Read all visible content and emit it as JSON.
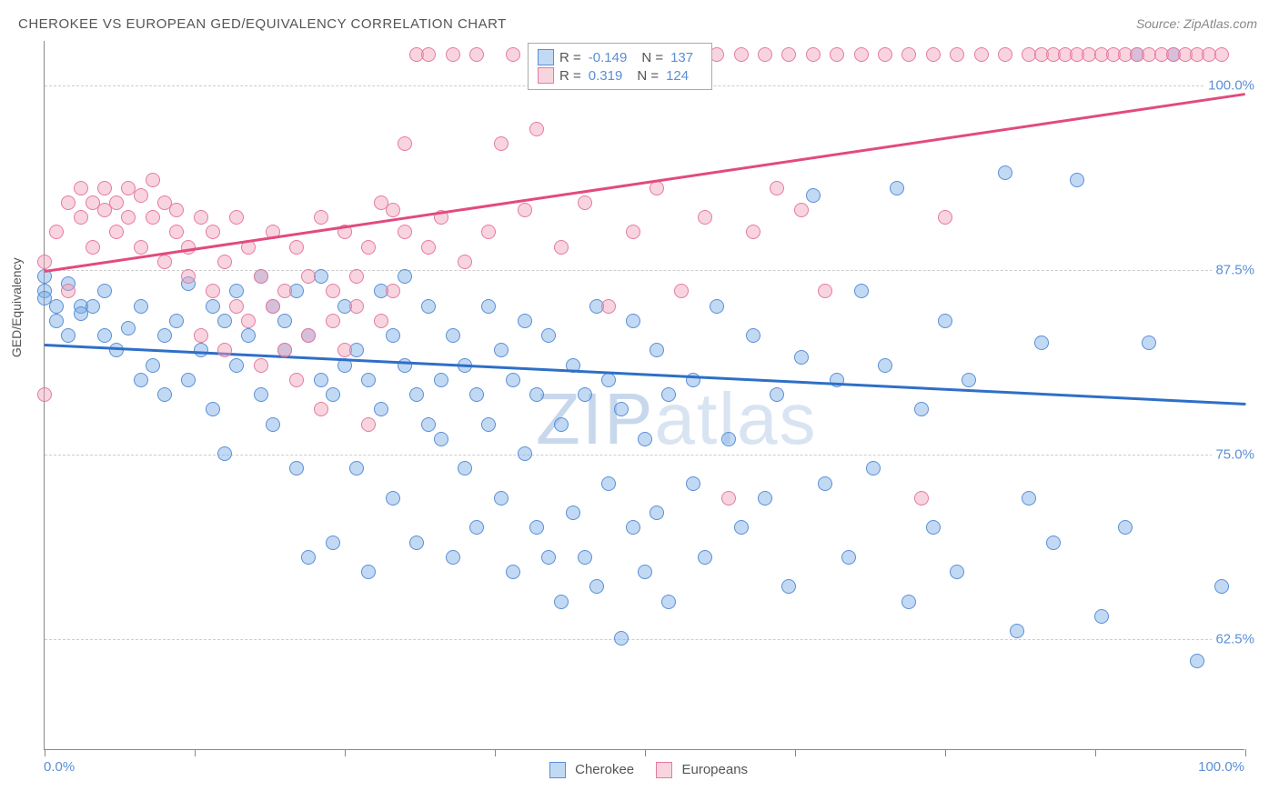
{
  "title": "CHEROKEE VS EUROPEAN GED/EQUIVALENCY CORRELATION CHART",
  "source": "Source: ZipAtlas.com",
  "ylabel": "GED/Equivalency",
  "watermark_zip": "ZIP",
  "watermark_atlas": "atlas",
  "chart": {
    "type": "scatter",
    "xlim": [
      0,
      100
    ],
    "ylim": [
      55,
      103
    ],
    "x_tick_positions": [
      0,
      12.5,
      25,
      37.5,
      50,
      62.5,
      75,
      87.5,
      100
    ],
    "x_labels": {
      "min": "0.0%",
      "max": "100.0%"
    },
    "y_gridlines": [
      62.5,
      75.0,
      87.5,
      100.0
    ],
    "y_labels": [
      "62.5%",
      "75.0%",
      "87.5%",
      "100.0%"
    ],
    "grid_color": "#cccccc",
    "axis_color": "#888888",
    "background_color": "#ffffff",
    "marker_radius": 8,
    "marker_opacity": 0.55,
    "title_fontsize": 15,
    "label_fontsize": 14,
    "tick_fontsize": 15,
    "tick_label_color": "#5a8fd6"
  },
  "series": [
    {
      "name": "Cherokee",
      "color_fill": "rgba(120,170,230,0.45)",
      "color_stroke": "#5a8fd6",
      "trend_color": "#2e6fc7",
      "trend_width": 3,
      "R": "-0.149",
      "N": "137",
      "trend": {
        "y_at_x0": 82.5,
        "y_at_x100": 78.5
      },
      "points": [
        [
          0,
          87
        ],
        [
          0,
          86
        ],
        [
          0,
          85.5
        ],
        [
          1,
          85
        ],
        [
          1,
          84
        ],
        [
          2,
          86.5
        ],
        [
          2,
          83
        ],
        [
          3,
          85
        ],
        [
          3,
          84.5
        ],
        [
          4,
          85
        ],
        [
          5,
          83
        ],
        [
          5,
          86
        ],
        [
          6,
          82
        ],
        [
          7,
          83.5
        ],
        [
          8,
          85
        ],
        [
          8,
          80
        ],
        [
          9,
          81
        ],
        [
          10,
          83
        ],
        [
          10,
          79
        ],
        [
          11,
          84
        ],
        [
          12,
          86.5
        ],
        [
          12,
          80
        ],
        [
          13,
          82
        ],
        [
          14,
          85
        ],
        [
          14,
          78
        ],
        [
          15,
          84
        ],
        [
          15,
          75
        ],
        [
          16,
          86
        ],
        [
          16,
          81
        ],
        [
          17,
          83
        ],
        [
          18,
          87
        ],
        [
          18,
          79
        ],
        [
          19,
          85
        ],
        [
          19,
          77
        ],
        [
          20,
          84
        ],
        [
          20,
          82
        ],
        [
          21,
          86
        ],
        [
          21,
          74
        ],
        [
          22,
          83
        ],
        [
          22,
          68
        ],
        [
          23,
          87
        ],
        [
          23,
          80
        ],
        [
          24,
          79
        ],
        [
          24,
          69
        ],
        [
          25,
          85
        ],
        [
          25,
          81
        ],
        [
          26,
          82
        ],
        [
          26,
          74
        ],
        [
          27,
          80
        ],
        [
          27,
          67
        ],
        [
          28,
          86
        ],
        [
          28,
          78
        ],
        [
          29,
          83
        ],
        [
          29,
          72
        ],
        [
          30,
          87
        ],
        [
          30,
          81
        ],
        [
          31,
          79
        ],
        [
          31,
          69
        ],
        [
          32,
          85
        ],
        [
          32,
          77
        ],
        [
          33,
          76
        ],
        [
          33,
          80
        ],
        [
          34,
          68
        ],
        [
          34,
          83
        ],
        [
          35,
          74
        ],
        [
          35,
          81
        ],
        [
          36,
          79
        ],
        [
          36,
          70
        ],
        [
          37,
          85
        ],
        [
          37,
          77
        ],
        [
          38,
          72
        ],
        [
          38,
          82
        ],
        [
          39,
          80
        ],
        [
          39,
          67
        ],
        [
          40,
          84
        ],
        [
          40,
          75
        ],
        [
          41,
          79
        ],
        [
          41,
          70
        ],
        [
          42,
          68
        ],
        [
          42,
          83
        ],
        [
          43,
          77
        ],
        [
          43,
          65
        ],
        [
          44,
          81
        ],
        [
          44,
          71
        ],
        [
          45,
          79
        ],
        [
          45,
          68
        ],
        [
          46,
          85
        ],
        [
          46,
          66
        ],
        [
          47,
          73
        ],
        [
          47,
          80
        ],
        [
          48,
          62.5
        ],
        [
          48,
          78
        ],
        [
          49,
          70
        ],
        [
          49,
          84
        ],
        [
          50,
          76
        ],
        [
          50,
          67
        ],
        [
          51,
          82
        ],
        [
          51,
          71
        ],
        [
          52,
          79
        ],
        [
          52,
          65
        ],
        [
          54,
          80
        ],
        [
          54,
          73
        ],
        [
          55,
          68
        ],
        [
          56,
          85
        ],
        [
          57,
          76
        ],
        [
          58,
          70
        ],
        [
          59,
          83
        ],
        [
          60,
          72
        ],
        [
          61,
          79
        ],
        [
          62,
          66
        ],
        [
          63,
          81.5
        ],
        [
          64,
          92.5
        ],
        [
          65,
          73
        ],
        [
          66,
          80
        ],
        [
          67,
          68
        ],
        [
          68,
          86
        ],
        [
          69,
          74
        ],
        [
          70,
          81
        ],
        [
          71,
          93
        ],
        [
          72,
          65
        ],
        [
          73,
          78
        ],
        [
          74,
          70
        ],
        [
          75,
          84
        ],
        [
          76,
          67
        ],
        [
          77,
          80
        ],
        [
          80,
          94
        ],
        [
          81,
          63
        ],
        [
          82,
          72
        ],
        [
          83,
          82.5
        ],
        [
          84,
          69
        ],
        [
          86,
          93.5
        ],
        [
          88,
          64
        ],
        [
          90,
          70
        ],
        [
          91,
          102
        ],
        [
          92,
          82.5
        ],
        [
          94,
          102
        ],
        [
          96,
          61
        ],
        [
          98,
          66
        ]
      ]
    },
    {
      "name": "Europeans",
      "color_fill": "rgba(240,160,185,0.45)",
      "color_stroke": "#e67aa0",
      "trend_color": "#e24a80",
      "trend_width": 3,
      "R": "0.319",
      "N": "124",
      "trend": {
        "y_at_x0": 87.5,
        "y_at_x100": 99.5
      },
      "points": [
        [
          0,
          88
        ],
        [
          0,
          79
        ],
        [
          1,
          90
        ],
        [
          2,
          92
        ],
        [
          2,
          86
        ],
        [
          3,
          91
        ],
        [
          3,
          93
        ],
        [
          4,
          92
        ],
        [
          4,
          89
        ],
        [
          5,
          91.5
        ],
        [
          5,
          93
        ],
        [
          6,
          92
        ],
        [
          6,
          90
        ],
        [
          7,
          93
        ],
        [
          7,
          91
        ],
        [
          8,
          92.5
        ],
        [
          8,
          89
        ],
        [
          9,
          91
        ],
        [
          9,
          93.5
        ],
        [
          10,
          92
        ],
        [
          10,
          88
        ],
        [
          11,
          90
        ],
        [
          11,
          91.5
        ],
        [
          12,
          89
        ],
        [
          12,
          87
        ],
        [
          13,
          91
        ],
        [
          13,
          83
        ],
        [
          14,
          90
        ],
        [
          14,
          86
        ],
        [
          15,
          88
        ],
        [
          15,
          82
        ],
        [
          16,
          85
        ],
        [
          16,
          91
        ],
        [
          17,
          89
        ],
        [
          17,
          84
        ],
        [
          18,
          87
        ],
        [
          18,
          81
        ],
        [
          19,
          90
        ],
        [
          19,
          85
        ],
        [
          20,
          86
        ],
        [
          20,
          82
        ],
        [
          21,
          89
        ],
        [
          21,
          80
        ],
        [
          22,
          87
        ],
        [
          22,
          83
        ],
        [
          23,
          91
        ],
        [
          23,
          78
        ],
        [
          24,
          86
        ],
        [
          24,
          84
        ],
        [
          25,
          90
        ],
        [
          25,
          82
        ],
        [
          26,
          87
        ],
        [
          26,
          85
        ],
        [
          27,
          89
        ],
        [
          27,
          77
        ],
        [
          28,
          92
        ],
        [
          28,
          84
        ],
        [
          29,
          91.5
        ],
        [
          29,
          86
        ],
        [
          30,
          90
        ],
        [
          30,
          96
        ],
        [
          31,
          102
        ],
        [
          32,
          89
        ],
        [
          32,
          102
        ],
        [
          33,
          91
        ],
        [
          34,
          102
        ],
        [
          35,
          88
        ],
        [
          36,
          102
        ],
        [
          37,
          90
        ],
        [
          38,
          96
        ],
        [
          39,
          102
        ],
        [
          40,
          91.5
        ],
        [
          41,
          97
        ],
        [
          42,
          102
        ],
        [
          43,
          89
        ],
        [
          44,
          102
        ],
        [
          45,
          92
        ],
        [
          46,
          102
        ],
        [
          47,
          85
        ],
        [
          48,
          102
        ],
        [
          49,
          90
        ],
        [
          50,
          102
        ],
        [
          51,
          93
        ],
        [
          52,
          102
        ],
        [
          53,
          86
        ],
        [
          54,
          102
        ],
        [
          55,
          91
        ],
        [
          56,
          102
        ],
        [
          57,
          72
        ],
        [
          58,
          102
        ],
        [
          59,
          90
        ],
        [
          60,
          102
        ],
        [
          61,
          93
        ],
        [
          62,
          102
        ],
        [
          63,
          91.5
        ],
        [
          64,
          102
        ],
        [
          65,
          86
        ],
        [
          66,
          102
        ],
        [
          68,
          102
        ],
        [
          70,
          102
        ],
        [
          72,
          102
        ],
        [
          73,
          72
        ],
        [
          74,
          102
        ],
        [
          75,
          91
        ],
        [
          76,
          102
        ],
        [
          78,
          102
        ],
        [
          80,
          102
        ],
        [
          82,
          102
        ],
        [
          83,
          102
        ],
        [
          84,
          102
        ],
        [
          85,
          102
        ],
        [
          86,
          102
        ],
        [
          87,
          102
        ],
        [
          88,
          102
        ],
        [
          89,
          102
        ],
        [
          90,
          102
        ],
        [
          91,
          102
        ],
        [
          92,
          102
        ],
        [
          93,
          102
        ],
        [
          94,
          102
        ],
        [
          95,
          102
        ],
        [
          96,
          102
        ],
        [
          97,
          102
        ],
        [
          98,
          102
        ]
      ]
    }
  ],
  "legend": {
    "R_label": "R =",
    "N_label": "N ="
  },
  "bottom_legend": {
    "s1": "Cherokee",
    "s2": "Europeans"
  }
}
